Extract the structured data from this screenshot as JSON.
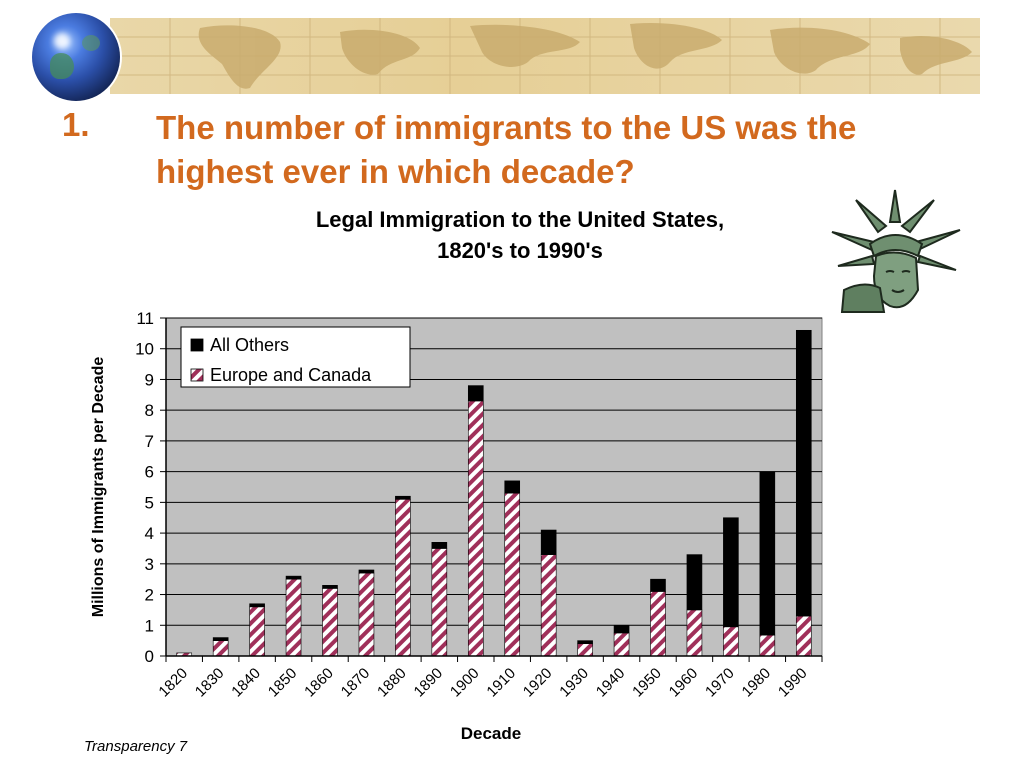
{
  "question": {
    "number": "1.",
    "text": "The number of immigrants to the US was the highest ever in which decade?"
  },
  "footer": "Transparency 7",
  "colors": {
    "question": "#d2691e",
    "plot_bg": "#c0c0c0",
    "all_others": "#000000",
    "europe_canada_stripe": "#a0305a"
  },
  "icons": {
    "globe": "globe-icon",
    "statue": "statue-of-liberty-icon",
    "banner": "world-map-banner"
  },
  "chart_data": {
    "type": "bar",
    "stacked": true,
    "title_line1": "Legal Immigration to the United States,",
    "title_line2": "1820's to 1990's",
    "xlabel": "Decade",
    "ylabel": "Millions of Immigrants per Decade",
    "ylim": [
      0,
      11
    ],
    "yticks": [
      0,
      1,
      2,
      3,
      4,
      5,
      6,
      7,
      8,
      9,
      10,
      11
    ],
    "grid": true,
    "legend_position": "top-left",
    "categories": [
      "1820",
      "1830",
      "1840",
      "1850",
      "1860",
      "1870",
      "1880",
      "1890",
      "1900",
      "1910",
      "1920",
      "1930",
      "1940",
      "1950",
      "1960",
      "1970",
      "1980",
      "1990"
    ],
    "series": [
      {
        "name": "Europe and Canada",
        "values": [
          0.1,
          0.5,
          1.6,
          2.5,
          2.2,
          2.7,
          5.1,
          3.5,
          8.3,
          5.3,
          3.3,
          0.4,
          0.75,
          2.1,
          1.5,
          0.95,
          0.68,
          1.3
        ]
      },
      {
        "name": "All Others",
        "values": [
          0.0,
          0.1,
          0.1,
          0.1,
          0.1,
          0.1,
          0.1,
          0.2,
          0.5,
          0.4,
          0.8,
          0.1,
          0.25,
          0.4,
          1.8,
          3.55,
          5.32,
          9.3
        ]
      }
    ],
    "legend": [
      "All Others",
      "Europe and Canada"
    ]
  }
}
